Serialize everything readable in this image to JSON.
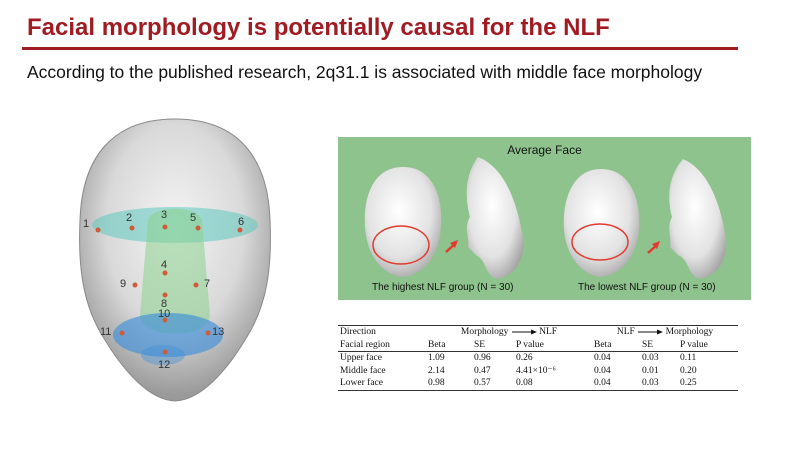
{
  "slide": {
    "title": "Facial morphology is potentially causal for the NLF",
    "subtitle": "According to the published research, 2q31.1 is associated with middle face morphology"
  },
  "face_landmarks": {
    "labels": [
      "1",
      "2",
      "3",
      "5",
      "6",
      "4",
      "9",
      "7",
      "8",
      "10",
      "11",
      "13",
      "12"
    ]
  },
  "average_face": {
    "title": "Average Face",
    "high_group": "The highest NLF group (N = 30)",
    "low_group": "The lowest NLF group (N = 30)"
  },
  "table": {
    "row_header_direction": "Direction",
    "row_header_region": "Facial region",
    "group1": {
      "from": "Morphology",
      "to": "NLF"
    },
    "group2": {
      "from": "NLF",
      "to": "Morphology"
    },
    "columns": [
      "Beta",
      "SE",
      "P value",
      "Beta",
      "SE",
      "P value"
    ],
    "rows": [
      {
        "region": "Upper face",
        "values": [
          "1.09",
          "0.96",
          "0.26",
          "0.04",
          "0.03",
          "0.11"
        ]
      },
      {
        "region": "Middle face",
        "values": [
          "2.14",
          "0.47",
          "4.41×10⁻⁶",
          "0.04",
          "0.01",
          "0.20"
        ]
      },
      {
        "region": "Lower face",
        "values": [
          "0.98",
          "0.57",
          "0.08",
          "0.04",
          "0.03",
          "0.25"
        ]
      }
    ]
  }
}
